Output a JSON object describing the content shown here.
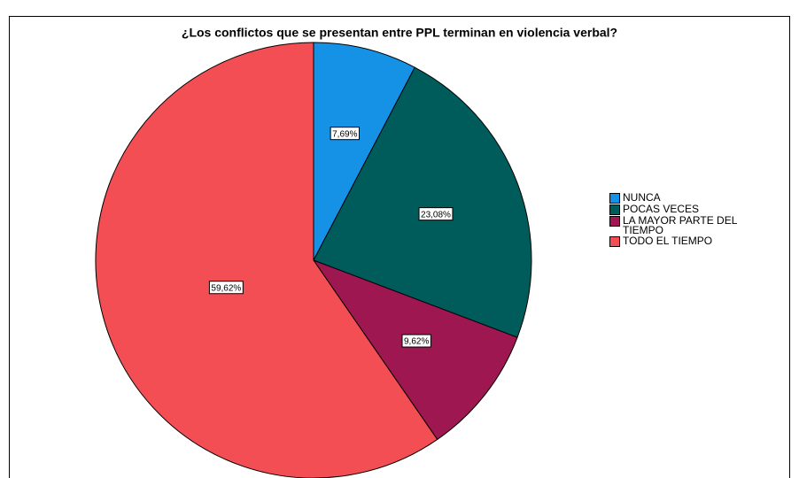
{
  "chart_data": {
    "type": "pie",
    "title": "¿Los conflictos que se presentan entre PPL terminan en violencia verbal?",
    "categories": [
      "NUNCA",
      "POCAS VECES",
      "LA MAYOR PARTE DEL TIEMPO",
      "TODO EL TIEMPO"
    ],
    "values": [
      7.69,
      23.08,
      9.62,
      59.62
    ],
    "value_labels": [
      "7,69%",
      "23,08%",
      "9,62%",
      "59,62%"
    ],
    "colors": [
      "#1592e6",
      "#005c5b",
      "#9e1750",
      "#f44e55"
    ],
    "legend": "top-right"
  }
}
